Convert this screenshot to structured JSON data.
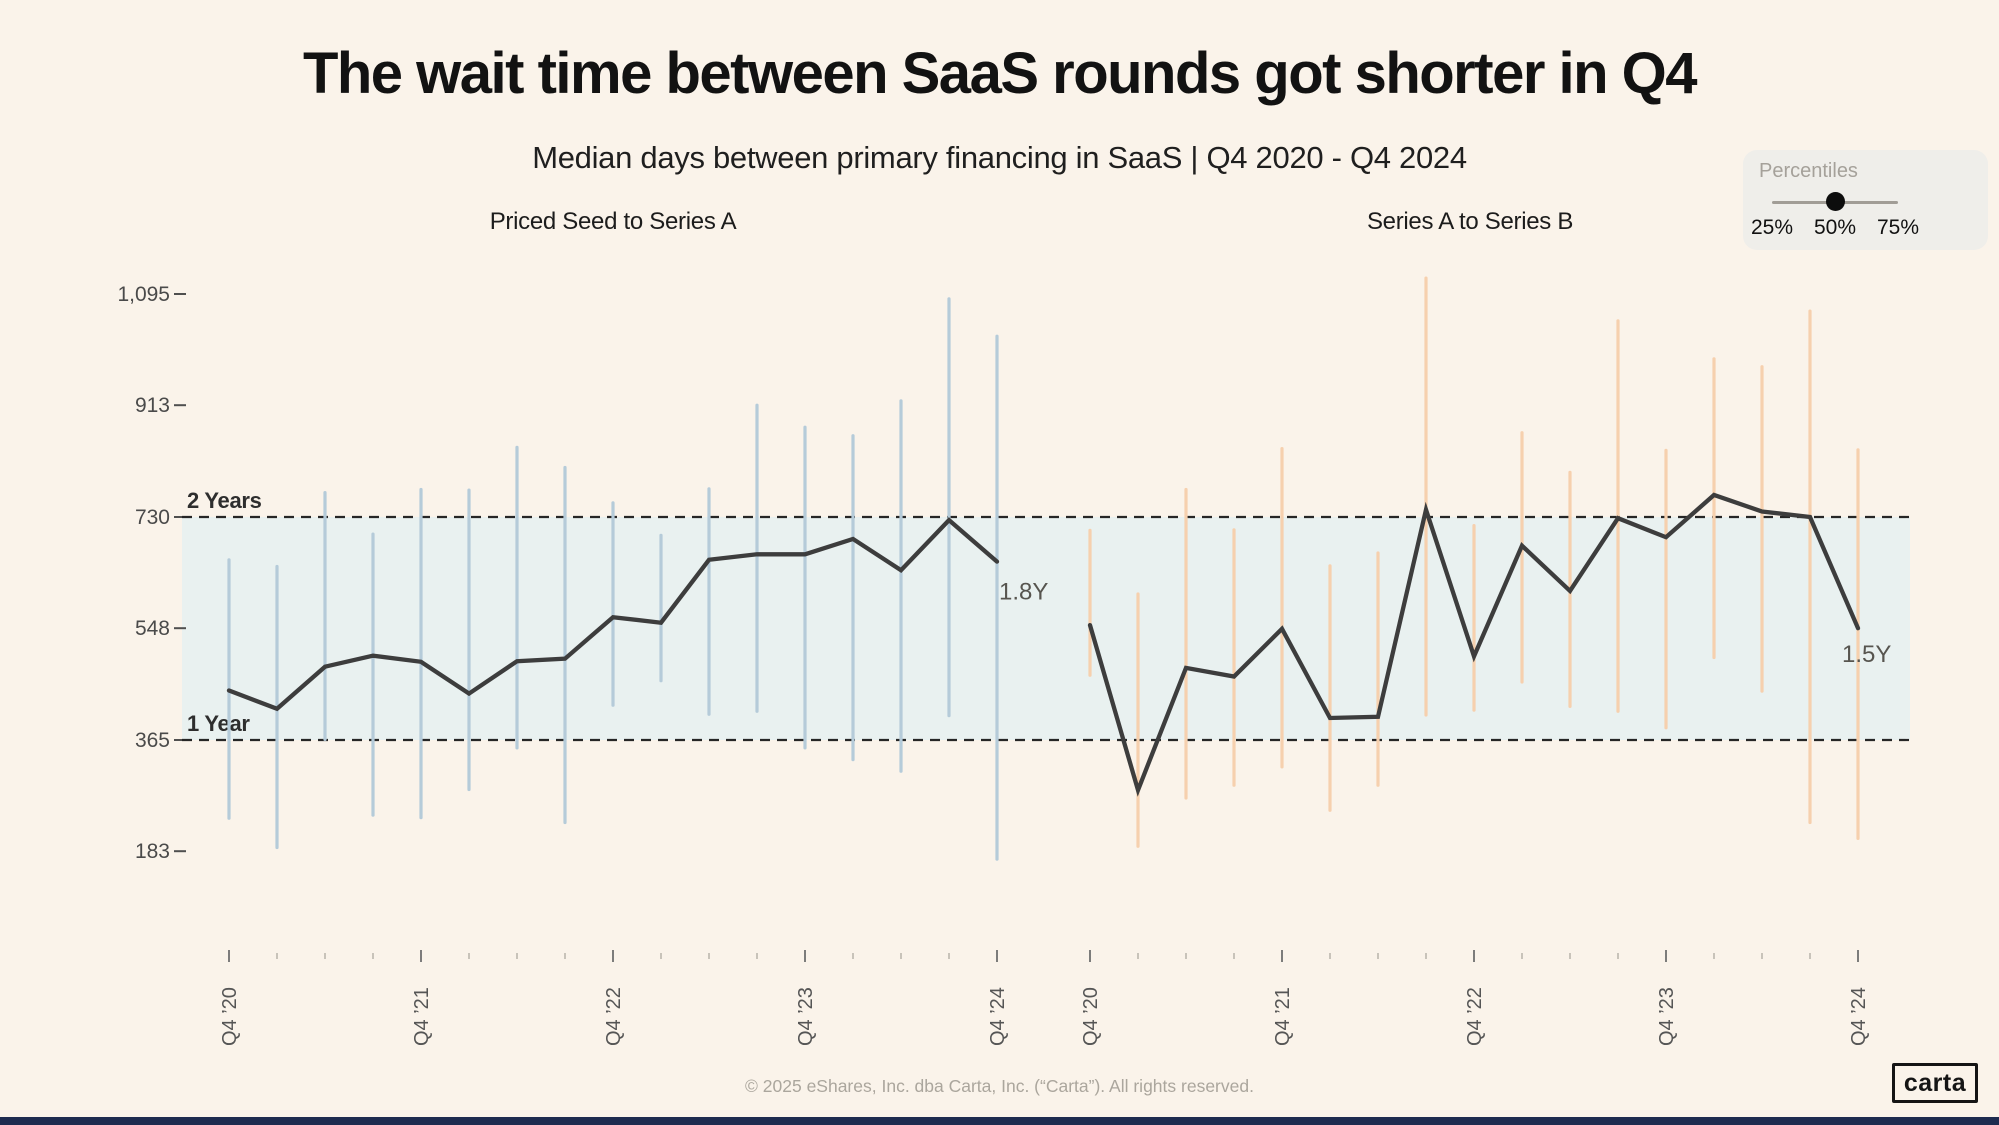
{
  "title": "The wait time between SaaS rounds got shorter in Q4",
  "subtitle": "Median days between primary financing in SaaS  | Q4 2020 - Q4 2024",
  "percentiles_widget": {
    "label": "Percentiles",
    "options": [
      "25%",
      "50%",
      "75%"
    ],
    "selected": "50%"
  },
  "footer": "© 2025 eShares, Inc. dba Carta, Inc. (“Carta”). All rights reserved.",
  "logo_text": "carta",
  "chart_data": {
    "type": "line",
    "unit": "days",
    "y_ticks": [
      1095,
      913,
      730,
      548,
      365,
      183
    ],
    "ylim": [
      120,
      1160
    ],
    "grid": "off",
    "reference_lines": [
      {
        "label": "2 Years",
        "value": 730
      },
      {
        "label": "1 Year",
        "value": 365
      }
    ],
    "band": {
      "from": 365,
      "to": 730,
      "color": "#e9f1f0"
    },
    "x_year_labels": [
      "Q4 ’20",
      "Q4 ’21",
      "Q4 ’22",
      "Q4 ’23",
      "Q4 ’24"
    ],
    "quarters_per_panel": 17,
    "line_color": "#3d3d3d",
    "panels": [
      {
        "title": "Priced Seed to Series A",
        "bar_color": "#b5cbd9",
        "end_label": "1.8Y",
        "p25": [
          237,
          189,
          366,
          242,
          238,
          284,
          352,
          230,
          422,
          462,
          407,
          412,
          352,
          333,
          314,
          405,
          170
        ],
        "median": [
          446,
          416,
          485,
          503,
          493,
          441,
          494,
          498,
          566,
          557,
          660,
          669,
          669,
          694,
          643,
          725,
          657
        ],
        "p75": [
          660,
          649,
          770,
          702,
          775,
          774,
          844,
          811,
          753,
          700,
          776,
          913,
          877,
          863,
          920,
          1087,
          1026
        ]
      },
      {
        "title": "Series A to Series B",
        "bar_color": "#f6d0ae",
        "end_label": "1.5Y",
        "p25": [
          471,
          191,
          270,
          291,
          321,
          250,
          291,
          406,
          414,
          460,
          420,
          412,
          385,
          500,
          445,
          230,
          204
        ],
        "median": [
          553,
          283,
          483,
          469,
          547,
          401,
          403,
          742,
          502,
          683,
          609,
          728,
          697,
          766,
          739,
          730,
          548
        ],
        "p75": [
          708,
          604,
          775,
          709,
          842,
          650,
          671,
          1121,
          716,
          868,
          803,
          1051,
          839,
          989,
          976,
          1067,
          840
        ]
      }
    ]
  }
}
